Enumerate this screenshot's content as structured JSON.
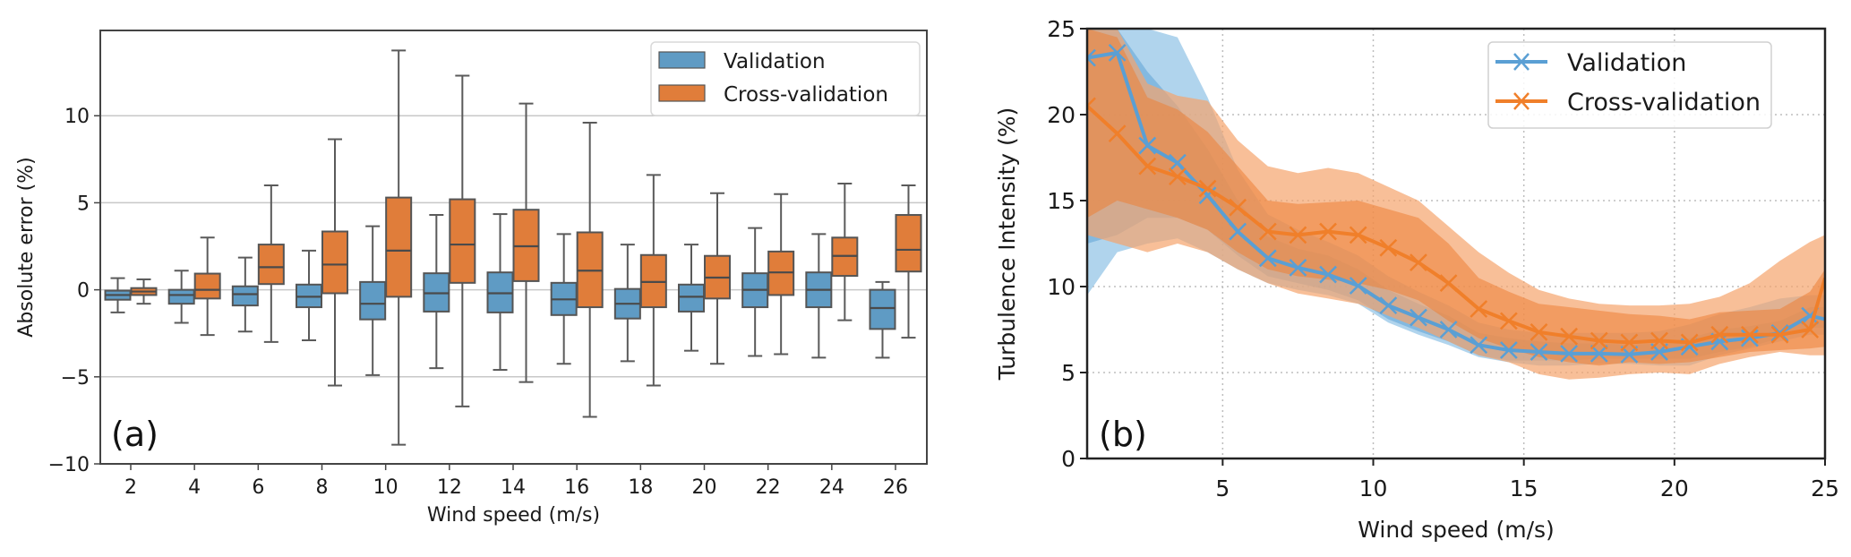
{
  "chart_data": [
    {
      "type": "box",
      "panel_label": "(a)",
      "xlabel": "Wind speed (m/s)",
      "ylabel": "Absolute error (%)",
      "ylim": [
        -10,
        14.9
      ],
      "yticks": [
        -10,
        -5,
        0,
        5,
        10
      ],
      "ytick_labels": [
        "−10",
        "−5",
        "0",
        "5",
        "10"
      ],
      "grid": "horizontal",
      "legend_position": "top-right",
      "categories": [
        "2",
        "4",
        "6",
        "8",
        "10",
        "12",
        "14",
        "16",
        "18",
        "20",
        "22",
        "24",
        "26"
      ],
      "series": [
        {
          "name": "Validation",
          "color": "#5f9bc4",
          "boxes": [
            {
              "whisker_low": -1.3,
              "q1": -0.57,
              "median": -0.3,
              "q3": -0.05,
              "whisker_high": 0.67
            },
            {
              "whisker_low": -1.9,
              "q1": -0.8,
              "median": -0.3,
              "q3": 0.0,
              "whisker_high": 1.1
            },
            {
              "whisker_low": -2.4,
              "q1": -0.9,
              "median": -0.25,
              "q3": 0.2,
              "whisker_high": 1.85
            },
            {
              "whisker_low": -2.9,
              "q1": -1.0,
              "median": -0.4,
              "q3": 0.3,
              "whisker_high": 2.25
            },
            {
              "whisker_low": -4.9,
              "q1": -1.7,
              "median": -0.8,
              "q3": 0.45,
              "whisker_high": 3.65
            },
            {
              "whisker_low": -4.5,
              "q1": -1.25,
              "median": -0.2,
              "q3": 0.95,
              "whisker_high": 4.3
            },
            {
              "whisker_low": -4.6,
              "q1": -1.3,
              "median": -0.2,
              "q3": 1.0,
              "whisker_high": 4.35
            },
            {
              "whisker_low": -4.25,
              "q1": -1.45,
              "median": -0.55,
              "q3": 0.4,
              "whisker_high": 3.2
            },
            {
              "whisker_low": -4.1,
              "q1": -1.65,
              "median": -0.8,
              "q3": 0.05,
              "whisker_high": 2.6
            },
            {
              "whisker_low": -3.5,
              "q1": -1.25,
              "median": -0.4,
              "q3": 0.3,
              "whisker_high": 2.6
            },
            {
              "whisker_low": -3.8,
              "q1": -1.0,
              "median": 0.0,
              "q3": 0.95,
              "whisker_high": 3.55
            },
            {
              "whisker_low": -3.9,
              "q1": -1.0,
              "median": 0.0,
              "q3": 1.0,
              "whisker_high": 3.2
            },
            {
              "whisker_low": -3.9,
              "q1": -2.25,
              "median": -1.05,
              "q3": 0.0,
              "whisker_high": 0.45
            }
          ]
        },
        {
          "name": "Cross-validation",
          "color": "#e07d3a",
          "boxes": [
            {
              "whisker_low": -0.8,
              "q1": -0.3,
              "median": -0.1,
              "q3": 0.1,
              "whisker_high": 0.6
            },
            {
              "whisker_low": -2.6,
              "q1": -0.5,
              "median": 0.0,
              "q3": 0.93,
              "whisker_high": 3.0
            },
            {
              "whisker_low": -3.0,
              "q1": 0.33,
              "median": 1.3,
              "q3": 2.6,
              "whisker_high": 6.0
            },
            {
              "whisker_low": -5.5,
              "q1": -0.2,
              "median": 1.45,
              "q3": 3.35,
              "whisker_high": 8.65
            },
            {
              "whisker_low": -8.9,
              "q1": -0.4,
              "median": 2.25,
              "q3": 5.3,
              "whisker_high": 13.75
            },
            {
              "whisker_low": -6.7,
              "q1": 0.4,
              "median": 2.6,
              "q3": 5.2,
              "whisker_high": 12.3
            },
            {
              "whisker_low": -5.3,
              "q1": 0.5,
              "median": 2.5,
              "q3": 4.6,
              "whisker_high": 10.7
            },
            {
              "whisker_low": -7.3,
              "q1": -1.0,
              "median": 1.1,
              "q3": 3.3,
              "whisker_high": 9.6
            },
            {
              "whisker_low": -5.5,
              "q1": -1.0,
              "median": 0.45,
              "q3": 2.0,
              "whisker_high": 6.6
            },
            {
              "whisker_low": -4.25,
              "q1": -0.5,
              "median": 0.7,
              "q3": 1.95,
              "whisker_high": 5.55
            },
            {
              "whisker_low": -3.7,
              "q1": -0.3,
              "median": 1.0,
              "q3": 2.2,
              "whisker_high": 5.5
            },
            {
              "whisker_low": -1.75,
              "q1": 0.8,
              "median": 1.95,
              "q3": 3.0,
              "whisker_high": 6.1
            },
            {
              "whisker_low": -2.75,
              "q1": 1.05,
              "median": 2.3,
              "q3": 4.3,
              "whisker_high": 6.0
            }
          ]
        }
      ]
    },
    {
      "type": "line",
      "panel_label": "(b)",
      "xlabel": "Wind speed (m/s)",
      "ylabel": "Turbulence Intensity (%)",
      "xlim": [
        0.5,
        25
      ],
      "ylim": [
        0,
        25
      ],
      "xticks": [
        5,
        10,
        15,
        20,
        25
      ],
      "yticks": [
        0,
        5,
        10,
        15,
        20,
        25
      ],
      "grid": "dotted",
      "legend_position": "top-right",
      "x": [
        0.5,
        1.5,
        2.5,
        3.5,
        4.5,
        5.5,
        6.5,
        7.5,
        8.5,
        9.5,
        10.5,
        11.5,
        12.5,
        13.5,
        14.5,
        15.5,
        16.5,
        17.5,
        18.5,
        19.5,
        20.5,
        21.5,
        22.5,
        23.5,
        24.5,
        25
      ],
      "series": [
        {
          "name": "Validation",
          "color": "#5a9fd4",
          "marker": "x",
          "values": [
            23.3,
            23.6,
            18.2,
            17.2,
            15.3,
            13.2,
            11.65,
            11.1,
            10.7,
            10.05,
            8.9,
            8.2,
            7.5,
            6.6,
            6.3,
            6.2,
            6.1,
            6.1,
            6.05,
            6.2,
            6.5,
            6.8,
            7.0,
            7.3,
            8.3,
            8.1
          ],
          "inner_band_low": [
            12.5,
            13.0,
            14.0,
            14.0,
            13.3,
            11.8,
            10.6,
            10.2,
            9.8,
            9.2,
            8.1,
            7.4,
            6.8,
            6.0,
            5.7,
            5.7,
            5.7,
            5.8,
            5.8,
            5.8,
            5.8,
            6.2,
            6.5,
            7.0,
            7.6,
            7.6
          ],
          "inner_band_high": [
            27,
            27,
            22.5,
            20.5,
            18.0,
            15.0,
            12.9,
            12.2,
            11.8,
            11.0,
            9.8,
            9.0,
            8.3,
            7.3,
            7.0,
            6.8,
            6.7,
            6.7,
            6.6,
            6.7,
            7.0,
            7.5,
            7.7,
            8.0,
            8.8,
            8.8
          ],
          "outer_band_low": [
            9.5,
            12.0,
            12.5,
            12.8,
            12.0,
            11.0,
            10.2,
            9.8,
            9.5,
            9.0,
            7.9,
            7.2,
            6.6,
            5.9,
            5.6,
            5.4,
            5.4,
            5.5,
            5.5,
            5.4,
            5.4,
            6.0,
            6.4,
            6.8,
            7.2,
            7.2
          ],
          "outer_band_high": [
            30,
            30,
            27.5,
            24.5,
            21.0,
            16.8,
            14.2,
            13.3,
            12.6,
            11.8,
            10.6,
            9.7,
            8.9,
            7.9,
            7.5,
            7.3,
            7.3,
            7.3,
            7.3,
            7.4,
            7.8,
            8.4,
            8.8,
            9.3,
            9.5,
            9.5
          ]
        },
        {
          "name": "Cross-validation",
          "color": "#f07f2a",
          "marker": "x",
          "values": [
            20.5,
            18.9,
            17.0,
            16.4,
            15.7,
            14.6,
            13.2,
            13.0,
            13.2,
            13.0,
            12.25,
            11.4,
            10.2,
            8.7,
            8.0,
            7.35,
            7.1,
            6.85,
            6.75,
            6.85,
            6.75,
            7.2,
            7.2,
            7.2,
            7.5,
            10.5
          ],
          "inner_band_low": [
            14.0,
            15.0,
            14.5,
            14.0,
            13.3,
            12.0,
            11.0,
            10.6,
            10.4,
            10.2,
            9.8,
            9.2,
            8.0,
            7.0,
            6.4,
            5.9,
            5.6,
            5.4,
            5.6,
            5.5,
            5.6,
            5.9,
            6.2,
            6.3,
            6.4,
            6.5
          ],
          "inner_band_high": [
            26,
            24.5,
            21.0,
            20.3,
            19.0,
            17.0,
            15.0,
            14.8,
            14.9,
            15.0,
            14.5,
            14.0,
            12.5,
            10.5,
            9.7,
            9.0,
            8.8,
            8.6,
            8.4,
            8.3,
            8.1,
            8.5,
            8.6,
            8.7,
            9.7,
            11.0
          ],
          "outer_band_low": [
            13.0,
            12.5,
            12.0,
            12.5,
            12.0,
            11.0,
            10.2,
            9.6,
            9.3,
            9.0,
            8.3,
            7.6,
            6.8,
            6.0,
            5.6,
            4.9,
            4.6,
            4.7,
            4.9,
            5.0,
            4.9,
            5.5,
            5.9,
            6.2,
            6.0,
            6.0
          ],
          "outer_band_high": [
            27,
            27,
            21.8,
            21.1,
            20.8,
            18.5,
            17.0,
            16.6,
            16.9,
            16.6,
            15.8,
            15.0,
            13.5,
            12.0,
            10.8,
            9.8,
            9.3,
            9.0,
            8.9,
            8.9,
            9.0,
            9.4,
            10.2,
            11.5,
            12.6,
            13.0
          ]
        }
      ]
    }
  ]
}
